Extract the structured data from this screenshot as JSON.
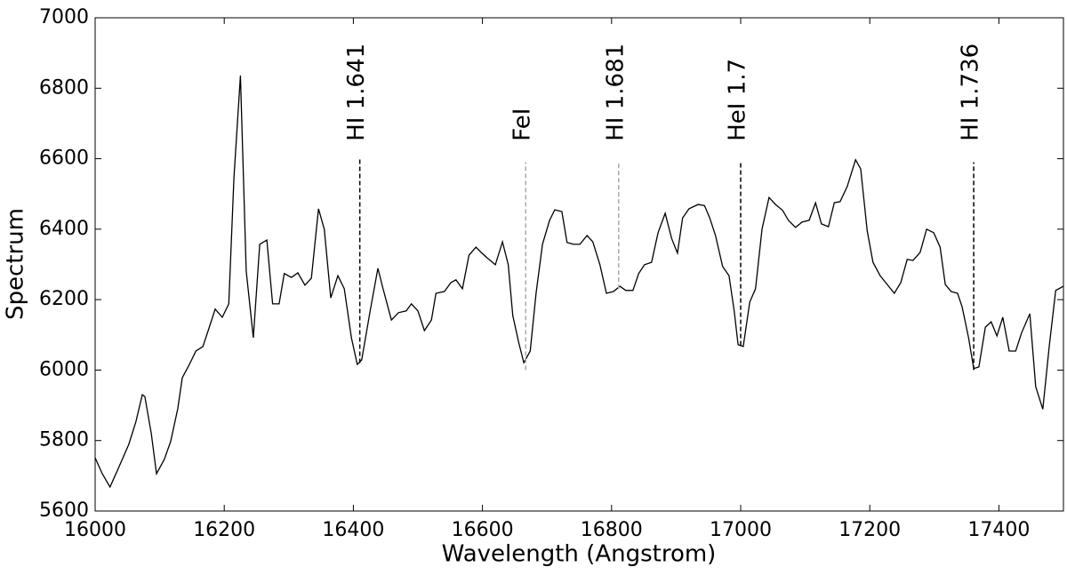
{
  "chart_data": {
    "type": "line",
    "xlabel": "Wavelength (Angstrom)",
    "ylabel": "Spectrum",
    "xlim": [
      16000,
      17500
    ],
    "ylim": [
      5600,
      7000
    ],
    "xticks": [
      16000,
      16200,
      16400,
      16600,
      16800,
      17000,
      17200,
      17400
    ],
    "yticks": [
      5600,
      5800,
      6000,
      6200,
      6400,
      6600,
      6800,
      7000
    ],
    "color": "#000000",
    "x": [
      16000,
      16011,
      16023,
      16036,
      16052,
      16063,
      16073,
      16077,
      16087,
      16095,
      16107,
      16117,
      16128,
      16135,
      16146,
      16156,
      16167,
      16176,
      16186,
      16197,
      16207,
      16215,
      16225,
      16234,
      16245,
      16255,
      16266,
      16275,
      16285,
      16293,
      16304,
      16314,
      16325,
      16335,
      16346,
      16355,
      16365,
      16376,
      16386,
      16397,
      16406,
      16413,
      16426,
      16438,
      16446,
      16459,
      16470,
      16482,
      16490,
      16500,
      16510,
      16521,
      16528,
      16541,
      16551,
      16559,
      16569,
      16579,
      16590,
      16598,
      16607,
      16620,
      16631,
      16640,
      16647,
      16656,
      16664,
      16674,
      16683,
      16693,
      16704,
      16712,
      16723,
      16731,
      16741,
      16751,
      16762,
      16771,
      16782,
      16792,
      16803,
      16813,
      16822,
      16833,
      16842,
      16851,
      16862,
      16872,
      16883,
      16893,
      16902,
      16910,
      16920,
      16934,
      16944,
      16952,
      16961,
      16972,
      16982,
      16990,
      16996,
      17004,
      17014,
      17023,
      17033,
      17044,
      17054,
      17065,
      17074,
      17085,
      17095,
      17106,
      17116,
      17125,
      17136,
      17145,
      17154,
      17165,
      17178,
      17186,
      17196,
      17205,
      17216,
      17227,
      17238,
      17248,
      17258,
      17267,
      17278,
      17288,
      17299,
      17309,
      17317,
      17326,
      17336,
      17343,
      17353,
      17361,
      17369,
      17379,
      17388,
      17397,
      17406,
      17416,
      17426,
      17435,
      17448,
      17457,
      17468,
      17478,
      17488,
      17500
    ],
    "values": [
      5751,
      5706,
      5668,
      5721,
      5789,
      5852,
      5930,
      5925,
      5819,
      5706,
      5746,
      5797,
      5890,
      5978,
      6016,
      6054,
      6067,
      6117,
      6173,
      6150,
      6188,
      6546,
      6836,
      6281,
      6092,
      6357,
      6369,
      6188,
      6188,
      6274,
      6263,
      6276,
      6241,
      6261,
      6458,
      6400,
      6205,
      6268,
      6231,
      6092,
      6016,
      6029,
      6168,
      6289,
      6231,
      6142,
      6163,
      6168,
      6188,
      6168,
      6112,
      6142,
      6218,
      6223,
      6248,
      6256,
      6231,
      6326,
      6349,
      6334,
      6319,
      6299,
      6364,
      6299,
      6155,
      6079,
      6021,
      6054,
      6218,
      6357,
      6425,
      6455,
      6450,
      6362,
      6357,
      6357,
      6382,
      6364,
      6299,
      6218,
      6223,
      6238,
      6226,
      6226,
      6274,
      6299,
      6306,
      6390,
      6445,
      6374,
      6332,
      6432,
      6458,
      6470,
      6467,
      6432,
      6382,
      6294,
      6268,
      6168,
      6072,
      6067,
      6193,
      6231,
      6400,
      6490,
      6470,
      6453,
      6425,
      6405,
      6420,
      6425,
      6475,
      6415,
      6407,
      6475,
      6478,
      6521,
      6597,
      6571,
      6395,
      6306,
      6268,
      6243,
      6218,
      6248,
      6314,
      6311,
      6334,
      6400,
      6390,
      6349,
      6243,
      6223,
      6218,
      6180,
      6092,
      6004,
      6009,
      6122,
      6137,
      6097,
      6150,
      6054,
      6054,
      6105,
      6160,
      5953,
      5889,
      6067,
      6226,
      6238
    ],
    "annotations": [
      {
        "text": "HI 1.641",
        "x": 16410,
        "ymin": 6020,
        "ymax": 6600,
        "color": "#000000"
      },
      {
        "text": "FeI",
        "x": 16667,
        "ymin": 6000,
        "ymax": 6590,
        "color": "#aaaaaa"
      },
      {
        "text": "HI 1.681",
        "x": 16811,
        "ymin": 6230,
        "ymax": 6590,
        "color": "#aaaaaa"
      },
      {
        "text": "HeI 1.7",
        "x": 17000,
        "ymin": 6070,
        "ymax": 6590,
        "color": "#000000"
      },
      {
        "text": "HI 1.736",
        "x": 17361,
        "ymin": 6000,
        "ymax": 6590,
        "color": "#000000"
      }
    ],
    "annotation_label_y": 6650
  }
}
